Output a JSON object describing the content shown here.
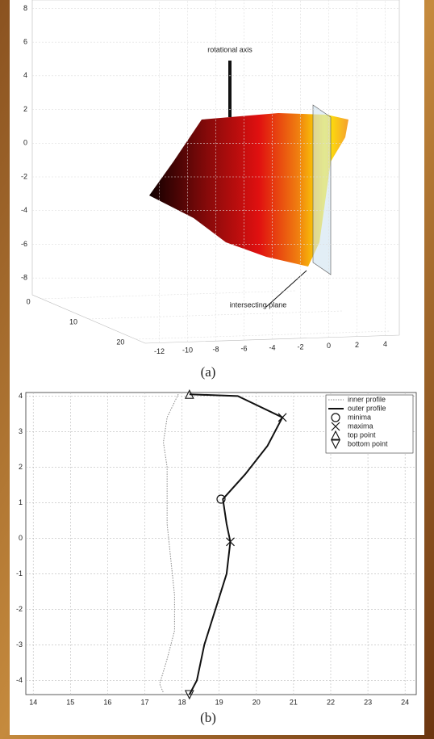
{
  "chart_data": [
    {
      "type": "surface3d",
      "caption": "(a)",
      "zlim": [
        -9,
        8.5
      ],
      "zticks": [
        8,
        6,
        4,
        2,
        0,
        -2,
        -4,
        -6,
        -8
      ],
      "xlim": [
        -13,
        5
      ],
      "xticks": [
        -12,
        -10,
        -8,
        -6,
        -4,
        -2,
        0,
        2,
        4
      ],
      "ylim": [
        -2,
        22
      ],
      "yticks": [
        0,
        10,
        20
      ],
      "grid": true,
      "annotations": [
        "rotational axis",
        "intersecting plane"
      ]
    },
    {
      "type": "line",
      "caption": "(b)",
      "xlim": [
        13.8,
        24.3
      ],
      "xticks": [
        14,
        15,
        16,
        17,
        18,
        19,
        20,
        21,
        22,
        23,
        24
      ],
      "ylim": [
        -4.4,
        4.1
      ],
      "yticks": [
        -4,
        -3,
        -2,
        -1,
        0,
        1,
        2,
        3,
        4
      ],
      "grid": true,
      "legend": "top-right",
      "series": [
        {
          "name": "inner profile",
          "color": "#888888",
          "style": "dotted",
          "x": [
            17.9,
            17.6,
            17.5,
            17.6,
            17.6,
            17.6,
            17.7,
            17.8,
            17.8,
            17.6,
            17.4,
            17.5
          ],
          "values": [
            4.05,
            3.4,
            2.7,
            2.0,
            1.2,
            0.4,
            -0.6,
            -1.6,
            -2.6,
            -3.4,
            -4.1,
            -4.35
          ]
        },
        {
          "name": "outer profile",
          "color": "#111111",
          "style": "solid",
          "x": [
            18.2,
            19.5,
            20.7,
            20.3,
            19.7,
            19.1,
            19.2,
            19.3,
            19.2,
            18.9,
            18.6,
            18.4,
            18.2
          ],
          "values": [
            4.05,
            4.0,
            3.4,
            2.6,
            1.8,
            1.1,
            0.4,
            -0.1,
            -1.0,
            -2.0,
            -3.0,
            -4.0,
            -4.4
          ]
        },
        {
          "name": "minima",
          "color": "#111111",
          "marker": "circle",
          "x": [
            19.05
          ],
          "values": [
            1.1
          ]
        },
        {
          "name": "maxima",
          "color": "#111111",
          "marker": "x",
          "x": [
            20.7,
            19.3
          ],
          "values": [
            3.4,
            -0.1
          ]
        },
        {
          "name": "top point",
          "color": "#111111",
          "marker": "triangle-up",
          "x": [
            18.2
          ],
          "values": [
            4.05
          ]
        },
        {
          "name": "bottom point",
          "color": "#111111",
          "marker": "triangle-down",
          "x": [
            18.2
          ],
          "values": [
            -4.4
          ]
        }
      ]
    }
  ]
}
